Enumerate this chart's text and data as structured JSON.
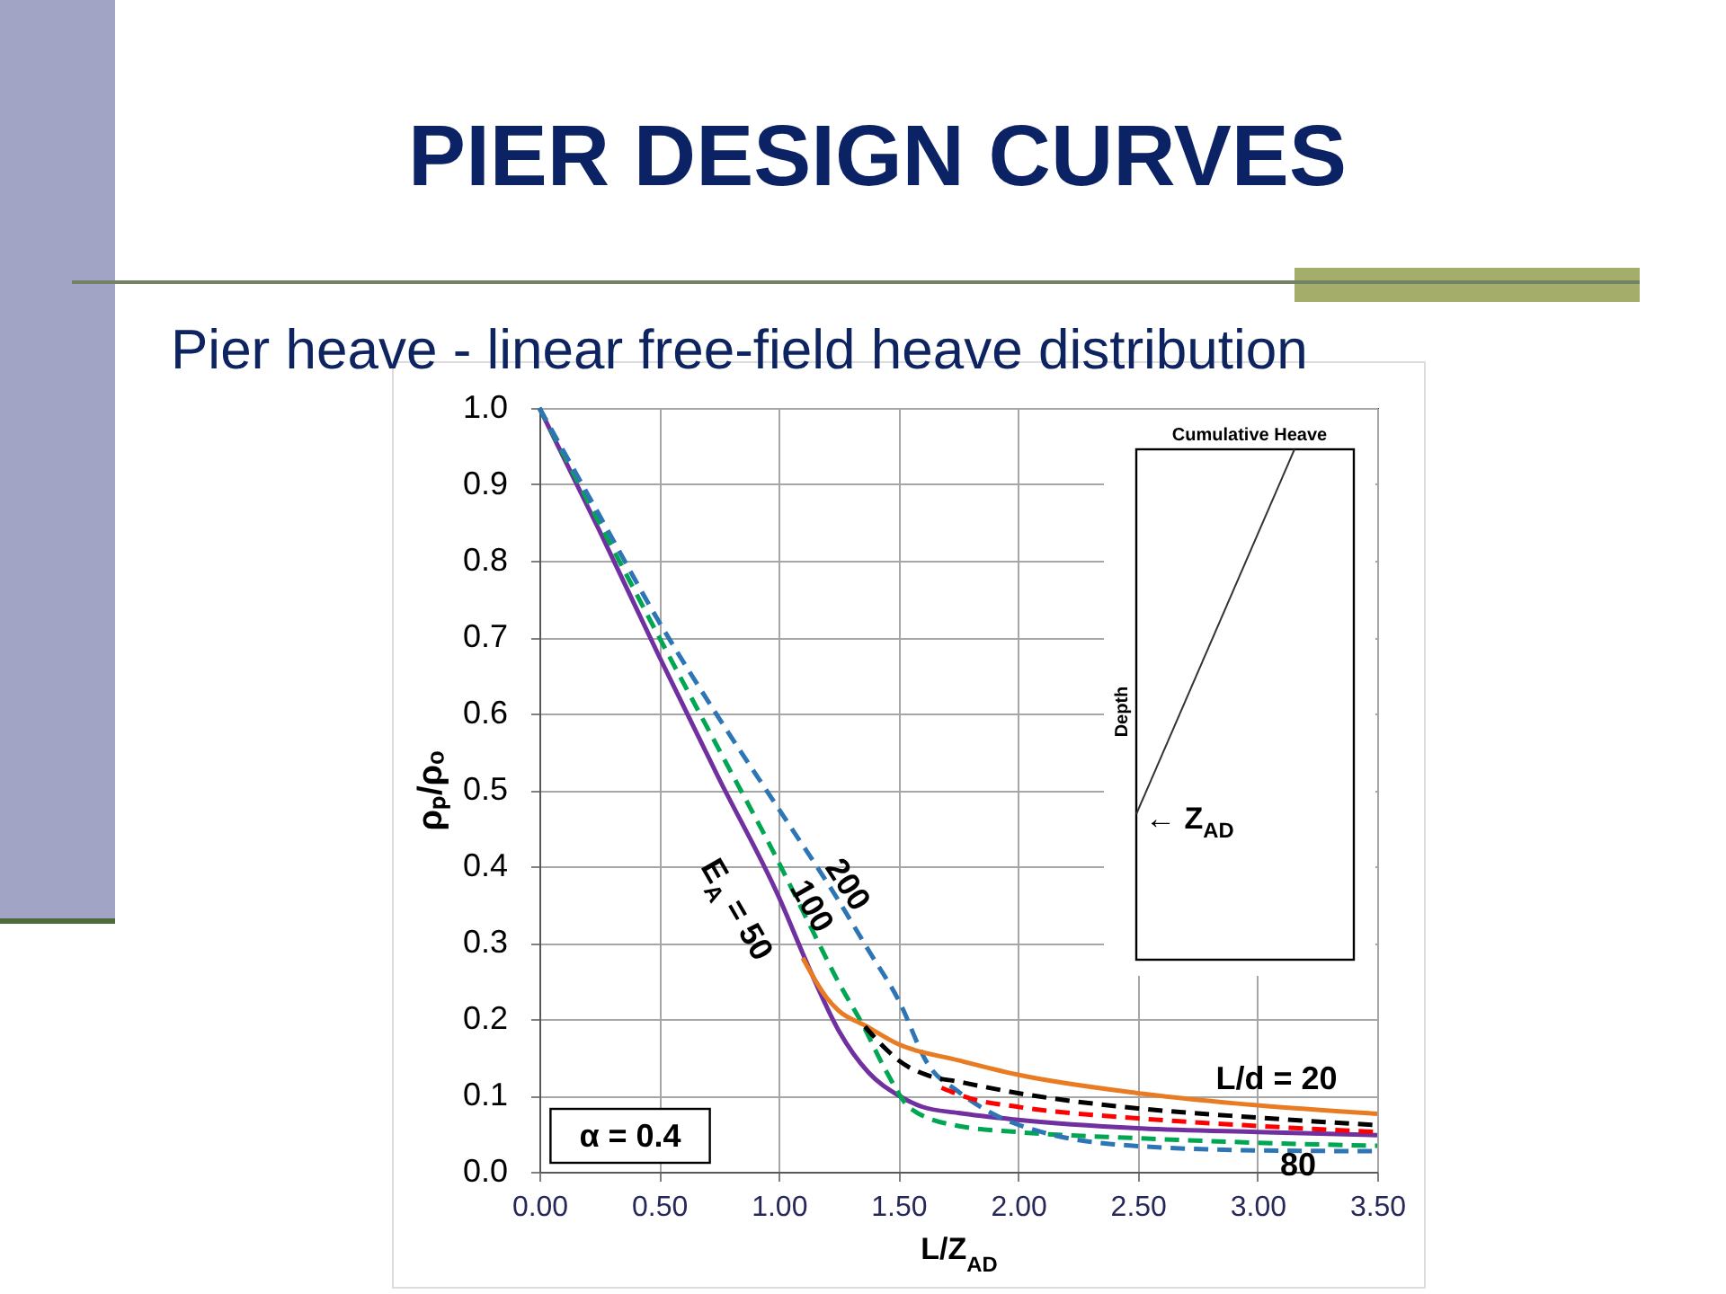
{
  "chart_data": {
    "type": "line",
    "title": "PIER DESIGN CURVES",
    "subtitle": "Pier heave - linear free-field heave distribution",
    "xlabel": "L/Z$_{AD}$",
    "ylabel": "ρₚ/ρₒ",
    "xlim": [
      0,
      3.5
    ],
    "ylim": [
      0,
      1
    ],
    "xticks": [
      {
        "value": 0,
        "label": "0.00"
      },
      {
        "value": 0.5,
        "label": "0.50"
      },
      {
        "value": 1,
        "label": "1.00"
      },
      {
        "value": 1.5,
        "label": "1.50"
      },
      {
        "value": 2,
        "label": "2.00"
      },
      {
        "value": 2.5,
        "label": "2.50"
      },
      {
        "value": 3,
        "label": "3.00"
      },
      {
        "value": 3.5,
        "label": "3.50"
      }
    ],
    "yticks": [
      {
        "value": 0,
        "label": "0.0"
      },
      0.1,
      0.2,
      0.3,
      0.4,
      0.5,
      0.6,
      0.7,
      0.8,
      0.9,
      {
        "value": 1,
        "label": "1.0"
      }
    ],
    "grid": true,
    "series": [
      {
        "color": "#7030a0",
        "line_style": "solid",
        "x": [
          0,
          0.25,
          0.5,
          0.75,
          1.0,
          1.125,
          1.25,
          1.375,
          1.5,
          1.6,
          1.75,
          2.0,
          2.5,
          3.0,
          3.5
        ],
        "values": [
          1.0,
          0.84,
          0.675,
          0.515,
          0.36,
          0.268,
          0.185,
          0.13,
          0.1,
          0.085,
          0.077,
          0.068,
          0.057,
          0.052,
          0.048
        ]
      },
      {
        "color": "#00a651",
        "line_style": "dashed",
        "x": [
          0,
          0.25,
          0.5,
          0.75,
          1.0,
          1.125,
          1.25,
          1.35,
          1.45,
          1.55,
          1.75,
          2.0,
          2.5,
          3.0,
          3.5
        ],
        "values": [
          1.0,
          0.85,
          0.7,
          0.553,
          0.405,
          0.326,
          0.248,
          0.193,
          0.131,
          0.083,
          0.06,
          0.052,
          0.044,
          0.038,
          0.034
        ]
      },
      {
        "color": "#2e75b6",
        "line_style": "dashed",
        "x": [
          0,
          0.25,
          0.5,
          0.75,
          1.0,
          1.25,
          1.375,
          1.5,
          1.625,
          1.75,
          1.9,
          2.1,
          2.4,
          3.0,
          3.5
        ],
        "values": [
          1.0,
          0.86,
          0.72,
          0.594,
          0.475,
          0.355,
          0.29,
          0.225,
          0.14,
          0.105,
          0.075,
          0.052,
          0.036,
          0.028,
          0.027
        ]
      },
      {
        "color": "#e97c22",
        "line_style": "solid",
        "x": [
          1.1,
          1.2,
          1.25,
          1.364,
          1.5,
          1.75,
          2.0,
          2.5,
          3.0,
          3.5
        ],
        "values": [
          0.28,
          0.228,
          0.211,
          0.191,
          0.167,
          0.146,
          0.127,
          0.103,
          0.087,
          0.076
        ]
      },
      {
        "color": "#000000",
        "line_style": "dashed",
        "x": [
          1.36,
          1.45,
          1.5,
          1.625,
          1.75,
          2.0,
          2.5,
          3.0,
          3.5
        ],
        "values": [
          0.19,
          0.16,
          0.146,
          0.126,
          0.118,
          0.103,
          0.083,
          0.071,
          0.061
        ]
      },
      {
        "color": "#ff0000",
        "line_style": "dashed",
        "x": [
          1.68,
          1.8,
          2.0,
          2.5,
          3.0,
          3.5
        ],
        "values": [
          0.11,
          0.096,
          0.085,
          0.07,
          0.06,
          0.052
        ]
      }
    ],
    "annotations": [
      "E$_{A}$ = 50",
      "100",
      "200",
      "L/d = 20",
      "80",
      "α = 0.4",
      "Cumulative Heave",
      "Depth",
      "← Z$_{AD}$"
    ]
  }
}
